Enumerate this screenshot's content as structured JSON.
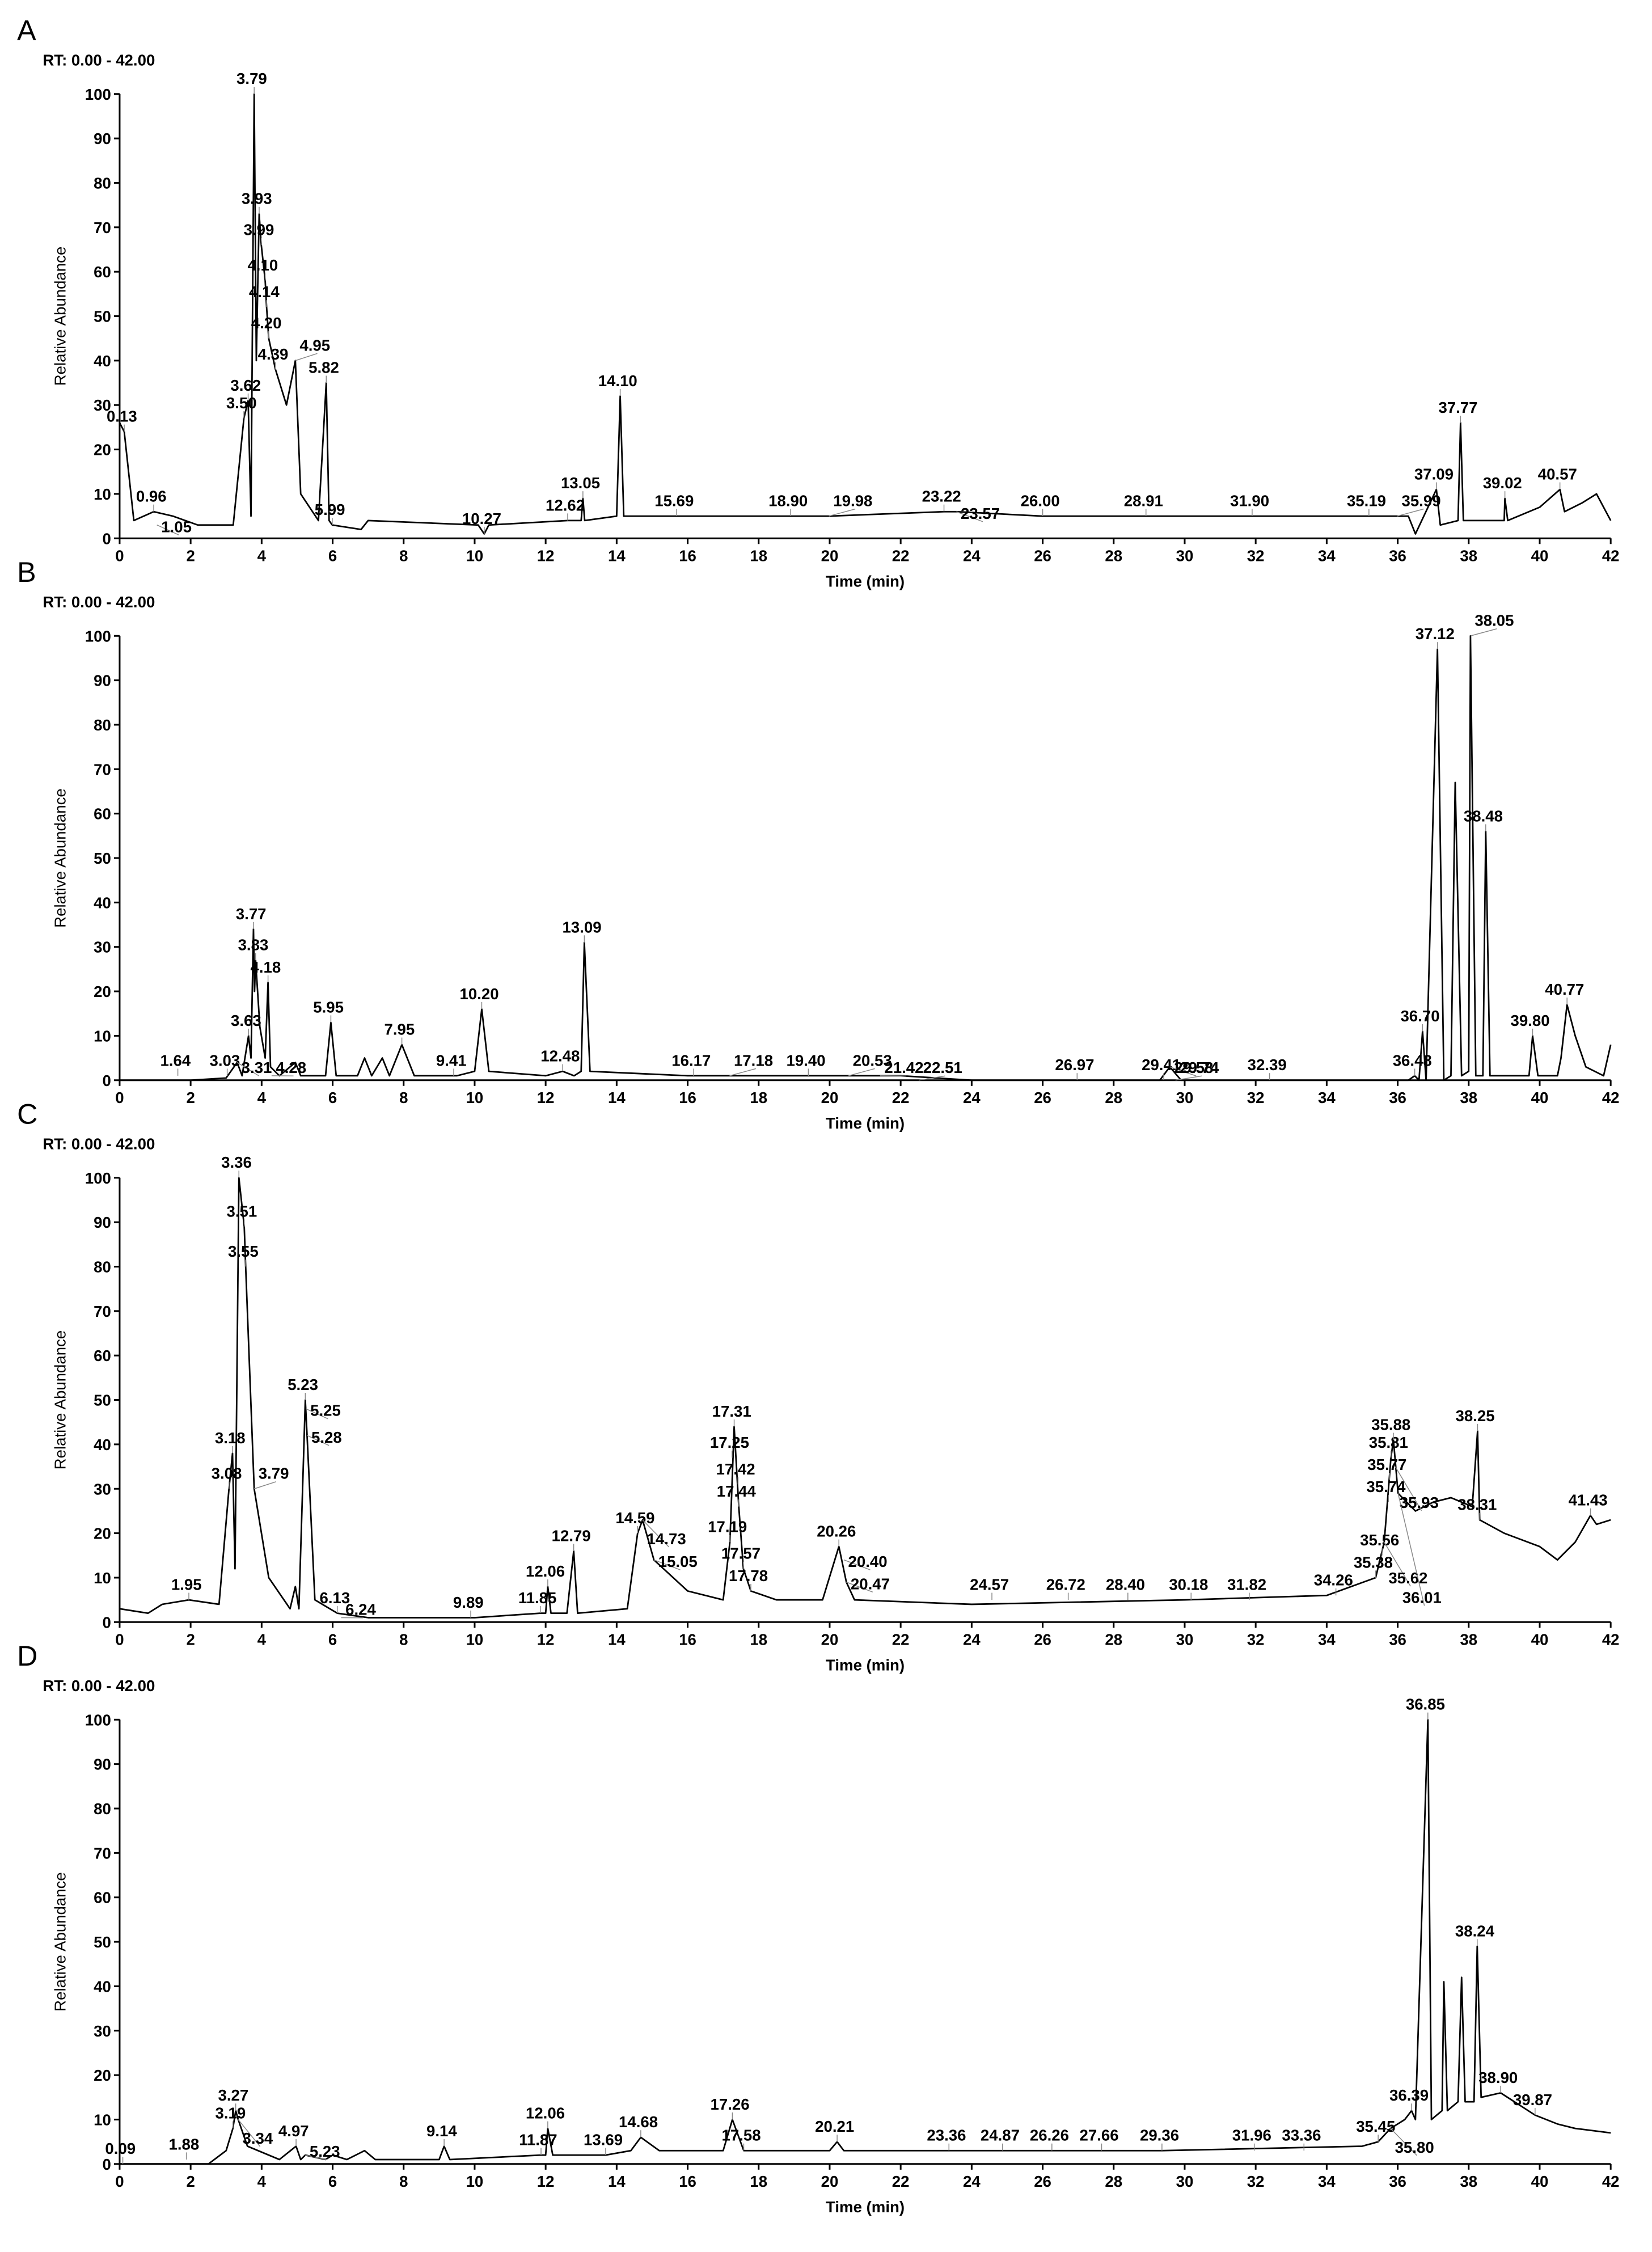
{
  "chart_data": [
    {
      "type": "line",
      "panel": "A",
      "subtitle": "RT: 0.00 - 42.00",
      "y_label": "Relative Abundance",
      "x_label": "Time (min)",
      "color": "#000000",
      "xlim": [
        0,
        42
      ],
      "ylim": [
        0,
        100
      ],
      "xticks": [
        0,
        2,
        4,
        6,
        8,
        10,
        12,
        14,
        16,
        18,
        20,
        22,
        24,
        26,
        28,
        30,
        32,
        34,
        36,
        38,
        40,
        42
      ],
      "yticks": [
        0,
        10,
        20,
        30,
        40,
        50,
        60,
        70,
        80,
        90,
        100
      ],
      "x": [
        0,
        0.13,
        0.4,
        0.96,
        1.5,
        2.2,
        3.2,
        3.5,
        3.62,
        3.7,
        3.79,
        3.85,
        3.93,
        3.99,
        4.1,
        4.14,
        4.2,
        4.39,
        4.7,
        4.95,
        5.1,
        5.6,
        5.82,
        5.9,
        5.99,
        6.8,
        7,
        10.1,
        10.27,
        10.4,
        12.62,
        13,
        13.05,
        13.1,
        14,
        14.1,
        14.2,
        15.69,
        18.9,
        19.98,
        23.22,
        23.57,
        26,
        28.91,
        31.9,
        35.19,
        35.99,
        36.3,
        36.5,
        37.09,
        37.2,
        37.7,
        37.77,
        37.85,
        38.2,
        39,
        39.02,
        39.1,
        40,
        40.57,
        40.7,
        41.2,
        41.6,
        42
      ],
      "values": [
        26,
        24,
        4,
        6,
        5,
        3,
        3,
        27,
        31,
        5,
        100,
        40,
        73,
        66,
        58,
        52,
        45,
        38,
        30,
        40,
        10,
        4,
        35,
        4,
        3,
        2,
        4,
        3,
        1,
        3,
        4,
        4,
        9,
        4,
        5,
        32,
        5,
        5,
        5,
        5,
        6,
        6,
        5,
        5,
        5,
        5,
        5,
        5,
        1,
        11,
        3,
        4,
        26,
        4,
        4,
        4,
        9,
        4,
        7,
        11,
        6,
        8,
        10,
        4
      ],
      "peak_x": [
        0.13,
        0.96,
        1.05,
        3.5,
        3.62,
        3.79,
        3.93,
        3.99,
        4.1,
        4.14,
        4.2,
        4.39,
        4.95,
        5.82,
        5.99,
        10.27,
        12.62,
        13.05,
        14.1,
        15.69,
        18.9,
        19.98,
        23.22,
        23.57,
        26.0,
        28.91,
        31.9,
        35.19,
        35.99,
        37.09,
        37.77,
        39.02,
        40.57
      ],
      "peak_labels": [
        "0.13",
        "0.96",
        "1.05",
        "3.50",
        "3.62",
        "3.79",
        "3.93",
        "3.99",
        "4.10",
        "4.14",
        "4.20",
        "4.39",
        "4.95",
        "5.82",
        "5.99",
        "10.27",
        "12.62",
        "13.05",
        "14.10",
        "15.69",
        "18.90",
        "19.98",
        "23.22",
        "23.57",
        "26.00",
        "28.91",
        "31.90",
        "35.19",
        "35.99",
        "37.09",
        "37.77",
        "39.02",
        "40.57"
      ],
      "peak_values": [
        24,
        6,
        3,
        27,
        31,
        100,
        73,
        66,
        58,
        52,
        45,
        38,
        40,
        35,
        3,
        1,
        4,
        9,
        32,
        5,
        5,
        5,
        6,
        6,
        5,
        5,
        5,
        5,
        5,
        11,
        26,
        9,
        11
      ]
    },
    {
      "type": "line",
      "panel": "B",
      "subtitle": "RT: 0.00 - 42.00",
      "y_label": "Relative Abundance",
      "x_label": "Time (min)",
      "color": "#000000",
      "xlim": [
        0,
        42
      ],
      "ylim": [
        0,
        100
      ],
      "xticks": [
        0,
        2,
        4,
        6,
        8,
        10,
        12,
        14,
        16,
        18,
        20,
        22,
        24,
        26,
        28,
        30,
        32,
        34,
        36,
        38,
        40,
        42
      ],
      "yticks": [
        0,
        10,
        20,
        30,
        40,
        50,
        60,
        70,
        80,
        90,
        100
      ],
      "x": [
        0,
        2,
        3,
        3.31,
        3.45,
        3.63,
        3.7,
        3.77,
        3.8,
        3.83,
        3.95,
        4.1,
        4.18,
        4.25,
        4.5,
        4.95,
        5.1,
        5.8,
        5.95,
        6.1,
        6.7,
        6.9,
        7.1,
        7.4,
        7.6,
        7.95,
        8.3,
        9.5,
        10,
        10.2,
        10.4,
        12,
        12.48,
        12.8,
        13,
        13.09,
        13.25,
        16,
        20,
        22,
        24,
        29.3,
        29.58,
        29.9,
        36.3,
        36.48,
        36.6,
        36.7,
        36.8,
        37.12,
        37.3,
        37.5,
        37.62,
        37.8,
        38,
        38.05,
        38.2,
        38.4,
        38.48,
        38.6,
        39.7,
        39.8,
        39.95,
        40.5,
        40.6,
        40.77,
        41,
        41.3,
        41.8,
        42
      ],
      "values": [
        0,
        0,
        0.5,
        4,
        1,
        10,
        5,
        34,
        20,
        27,
        12,
        5,
        22,
        3,
        1,
        4,
        1,
        1,
        13,
        1,
        1,
        5,
        1,
        5,
        1,
        8,
        1,
        1,
        2,
        16,
        2,
        1,
        2,
        1,
        2,
        31,
        2,
        1,
        1,
        1,
        0,
        0,
        3,
        0,
        0,
        1,
        0,
        11,
        0,
        97,
        0,
        1,
        67,
        1,
        2,
        100,
        1,
        1,
        56,
        1,
        1,
        10,
        1,
        1,
        5,
        17,
        10,
        3,
        1,
        8
      ],
      "peak_x": [
        1.64,
        3.03,
        3.31,
        3.63,
        3.77,
        3.83,
        4.18,
        4.28,
        5.95,
        7.95,
        9.41,
        10.2,
        12.48,
        13.09,
        16.17,
        17.18,
        19.4,
        20.53,
        21.42,
        22.51,
        26.97,
        29.41,
        29.58,
        29.74,
        32.39,
        36.48,
        36.7,
        37.12,
        38.05,
        38.48,
        39.8,
        40.77
      ],
      "peak_labels": [
        "1.64",
        "3.03",
        "3.31",
        "3.63",
        "3.77",
        "3.83",
        "4.18",
        "4.28",
        "5.95",
        "7.95",
        "9.41",
        "10.20",
        "12.48",
        "13.09",
        "16.17",
        "17.18",
        "19.40",
        "20.53",
        "21.42",
        "22.51",
        "26.97",
        "29.41",
        "29.58",
        "29.74",
        "32.39",
        "36.48",
        "36.70",
        "37.12",
        "38.05",
        "38.48",
        "39.80",
        "40.77"
      ],
      "peak_values": [
        1,
        1,
        4,
        10,
        34,
        27,
        22,
        1,
        13,
        8,
        1,
        16,
        2,
        31,
        1,
        1,
        1,
        1,
        1,
        0,
        0,
        0,
        3,
        0,
        0,
        1,
        11,
        97,
        100,
        56,
        10,
        17
      ]
    },
    {
      "type": "line",
      "panel": "C",
      "subtitle": "RT: 0.00 - 42.00",
      "y_label": "Relative Abundance",
      "x_label": "Time (min)",
      "color": "#000000",
      "xlim": [
        0,
        42
      ],
      "ylim": [
        0,
        100
      ],
      "xticks": [
        0,
        2,
        4,
        6,
        8,
        10,
        12,
        14,
        16,
        18,
        20,
        22,
        24,
        26,
        28,
        30,
        32,
        34,
        36,
        38,
        40,
        42
      ],
      "yticks": [
        0,
        10,
        20,
        30,
        40,
        50,
        60,
        70,
        80,
        90,
        100
      ],
      "x": [
        0,
        0.8,
        1.2,
        1.95,
        2.8,
        3.08,
        3.18,
        3.25,
        3.36,
        3.51,
        3.55,
        3.79,
        4.2,
        4.8,
        4.95,
        5.05,
        5.23,
        5.28,
        5.5,
        6.13,
        7,
        10,
        11.85,
        12,
        12.06,
        12.15,
        12.6,
        12.79,
        12.9,
        14.3,
        14.59,
        14.73,
        15.05,
        16,
        17,
        17.19,
        17.31,
        17.44,
        17.57,
        17.78,
        18.5,
        19.8,
        20.26,
        20.47,
        20.7,
        24,
        30,
        34,
        35.38,
        35.62,
        35.81,
        35.88,
        36.01,
        36.5,
        37,
        37.5,
        38.1,
        38.25,
        38.31,
        39,
        40,
        40.5,
        41,
        41.43,
        41.6,
        42
      ],
      "values": [
        3,
        2,
        4,
        5,
        4,
        30,
        38,
        12,
        100,
        89,
        80,
        30,
        10,
        3,
        8,
        3,
        50,
        42,
        5,
        2,
        1,
        1,
        2,
        2,
        8,
        2,
        2,
        16,
        2,
        3,
        20,
        23,
        14,
        7,
        5,
        18,
        44,
        26,
        12,
        7,
        5,
        5,
        17,
        9,
        5,
        4,
        5,
        6,
        10,
        18,
        37,
        41,
        29,
        25,
        27,
        28,
        26,
        43,
        23,
        20,
        17,
        14,
        18,
        24,
        22,
        23
      ],
      "peak_x": [
        1.95,
        3.08,
        3.18,
        3.36,
        3.51,
        3.55,
        3.79,
        5.23,
        5.25,
        5.28,
        6.13,
        6.24,
        9.89,
        11.85,
        12.06,
        12.79,
        14.59,
        14.73,
        15.05,
        17.19,
        17.25,
        17.31,
        17.42,
        17.44,
        17.57,
        17.78,
        20.26,
        20.4,
        20.47,
        24.57,
        26.72,
        28.4,
        30.18,
        31.82,
        34.26,
        35.38,
        35.56,
        35.62,
        35.74,
        35.77,
        35.81,
        35.88,
        35.93,
        36.01,
        38.25,
        38.31,
        41.43
      ],
      "peak_labels": [
        "1.95",
        "3.08",
        "3.18",
        "3.36",
        "3.51",
        "3.55",
        "3.79",
        "5.23",
        "5.25",
        "5.28",
        "6.13",
        "6.24",
        "9.89",
        "11.85",
        "12.06",
        "12.79",
        "14.59",
        "14.73",
        "15.05",
        "17.19",
        "17.25",
        "17.31",
        "17.42",
        "17.44",
        "17.57",
        "17.78",
        "20.26",
        "20.40",
        "20.47",
        "24.57",
        "26.72",
        "28.40",
        "30.18",
        "31.82",
        "34.26",
        "35.38",
        "35.56",
        "35.62",
        "35.74",
        "35.77",
        "35.81",
        "35.88",
        "35.93",
        "36.01",
        "38.25",
        "38.31",
        "41.43"
      ],
      "peak_values": [
        5,
        30,
        38,
        100,
        89,
        80,
        30,
        50,
        48,
        42,
        2,
        1,
        1,
        2,
        8,
        16,
        20,
        23,
        14,
        18,
        37,
        44,
        31,
        26,
        12,
        7,
        17,
        14,
        9,
        5,
        5,
        5,
        5,
        5,
        6,
        10,
        15,
        18,
        27,
        32,
        37,
        41,
        35,
        29,
        43,
        23,
        24
      ]
    },
    {
      "type": "line",
      "panel": "D",
      "subtitle": "RT: 0.00 - 42.00",
      "y_label": "Relative Abundance",
      "x_label": "Time (min)",
      "color": "#000000",
      "xlim": [
        0,
        42
      ],
      "ylim": [
        0,
        100
      ],
      "xticks": [
        0,
        2,
        4,
        6,
        8,
        10,
        12,
        14,
        16,
        18,
        20,
        22,
        24,
        26,
        28,
        30,
        32,
        34,
        36,
        38,
        40,
        42
      ],
      "yticks": [
        0,
        10,
        20,
        30,
        40,
        50,
        60,
        70,
        80,
        90,
        100
      ],
      "x": [
        0,
        2.5,
        3,
        3.19,
        3.27,
        3.34,
        3.6,
        4.5,
        4.97,
        5.1,
        5.23,
        5.8,
        6,
        6.4,
        6.9,
        7.2,
        9,
        9.14,
        9.3,
        11.87,
        12,
        12.06,
        12.2,
        13.69,
        14.4,
        14.68,
        15.2,
        17,
        17.26,
        17.58,
        20,
        20.21,
        20.4,
        29.36,
        35,
        35.45,
        35.8,
        36.2,
        36.39,
        36.5,
        36.85,
        36.95,
        37.25,
        37.3,
        37.4,
        37.7,
        37.8,
        37.9,
        38.15,
        38.24,
        38.35,
        38.9,
        39.87,
        40.5,
        41,
        42
      ],
      "values": [
        0,
        0,
        3,
        8,
        12,
        10,
        4,
        1,
        4,
        1,
        2,
        1,
        2,
        1,
        3,
        1,
        1,
        4,
        1,
        2,
        2,
        8,
        2,
        2,
        3,
        6,
        3,
        3,
        10,
        3,
        3,
        5,
        3,
        3,
        4,
        5,
        8,
        10,
        12,
        10,
        100,
        10,
        12,
        41,
        12,
        14,
        42,
        14,
        14,
        49,
        15,
        16,
        11,
        9,
        8,
        7
      ],
      "peak_x": [
        0.09,
        1.88,
        3.19,
        3.27,
        3.34,
        4.97,
        5.23,
        9.14,
        11.87,
        12.06,
        13.69,
        14.68,
        17.26,
        17.58,
        20.21,
        23.36,
        24.87,
        26.26,
        27.66,
        29.36,
        31.96,
        33.36,
        35.45,
        35.8,
        36.39,
        36.85,
        38.24,
        38.9,
        39.87
      ],
      "peak_labels": [
        "0.09",
        "1.88",
        "3.19",
        "3.27",
        "3.34",
        "4.97",
        "5.23",
        "9.14",
        "11.87",
        "12.06",
        "13.69",
        "14.68",
        "17.26",
        "17.58",
        "20.21",
        "23.36",
        "24.87",
        "26.26",
        "27.66",
        "29.36",
        "31.96",
        "33.36",
        "35.45",
        "35.80",
        "36.39",
        "36.85",
        "38.24",
        "38.90",
        "39.87"
      ],
      "peak_values": [
        0,
        1,
        8,
        12,
        10,
        4,
        2,
        4,
        2,
        8,
        2,
        6,
        10,
        3,
        5,
        3,
        3,
        3,
        3,
        3,
        3,
        3,
        5,
        8,
        12,
        100,
        49,
        16,
        11
      ]
    }
  ]
}
